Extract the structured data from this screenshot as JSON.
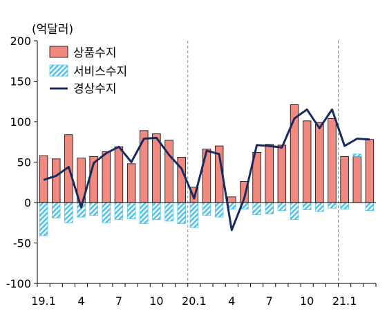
{
  "chart_data": {
    "type": "bar",
    "unit_label": "(억달러)",
    "x_tick_labels": [
      "19.1",
      "4",
      "7",
      "10",
      "20.1",
      "4",
      "7",
      "10",
      "21.1"
    ],
    "ylim": [
      -100,
      200
    ],
    "y_ticks": [
      200,
      150,
      100,
      50,
      0,
      -50,
      -100
    ],
    "period_dividers": [
      "20.1",
      "21.1"
    ],
    "legend_position": "top-left",
    "months": [
      "19.1",
      "19.2",
      "19.3",
      "19.4",
      "19.5",
      "19.6",
      "19.7",
      "19.8",
      "19.9",
      "19.10",
      "19.11",
      "19.12",
      "20.1",
      "20.2",
      "20.3",
      "20.4",
      "20.5",
      "20.6",
      "20.7",
      "20.8",
      "20.9",
      "20.10",
      "20.11",
      "20.12",
      "21.1",
      "21.2",
      "21.3"
    ],
    "series": [
      {
        "name": "상품수지",
        "type": "bar",
        "color": "#f08a80",
        "values": [
          58,
          54,
          84,
          55,
          57,
          63,
          69,
          48,
          89,
          85,
          77,
          56,
          19,
          66,
          70,
          7,
          26,
          62,
          72,
          71,
          121,
          101,
          99,
          104,
          57,
          57,
          78
        ]
      },
      {
        "name": "서비스수지",
        "type": "bar-hatched",
        "color": "#4fc3ea",
        "values": [
          -41,
          -19,
          -25,
          -18,
          -16,
          -25,
          -21,
          -20,
          -26,
          -21,
          -23,
          -26,
          -31,
          -16,
          -18,
          -8,
          -8,
          -15,
          -14,
          -10,
          -21,
          -9,
          -11,
          -7,
          -8,
          3,
          -10
        ]
      },
      {
        "name": "경상수지",
        "type": "line",
        "color": "#1a2a5e",
        "values": [
          28,
          33,
          44,
          -6,
          49,
          61,
          69,
          50,
          79,
          80,
          59,
          42,
          5,
          64,
          60,
          -34,
          5,
          71,
          70,
          68,
          104,
          115,
          92,
          115,
          70,
          79,
          78
        ]
      }
    ]
  }
}
